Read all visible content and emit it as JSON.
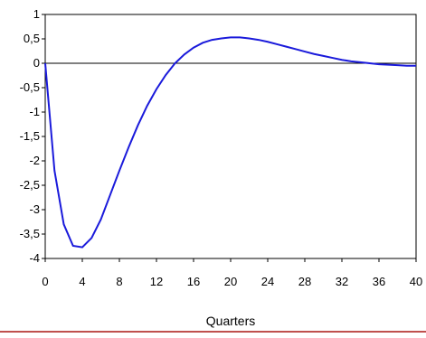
{
  "chart_data": {
    "type": "line",
    "title": "",
    "xlabel": "Quarters",
    "ylabel": "",
    "xlim": [
      0,
      40
    ],
    "ylim": [
      -4,
      1
    ],
    "x_ticks": [
      0,
      4,
      8,
      12,
      16,
      20,
      24,
      28,
      32,
      36,
      40
    ],
    "x_tick_labels": [
      "0",
      "4",
      "8",
      "12",
      "16",
      "20",
      "24",
      "28",
      "32",
      "36",
      "40"
    ],
    "y_ticks": [
      1,
      0.5,
      0,
      -0.5,
      -1,
      -1.5,
      -2,
      -2.5,
      -3,
      -3.5,
      -4
    ],
    "y_tick_labels": [
      "1",
      "0,5",
      "0",
      "-0,5",
      "-1",
      "-1,5",
      "-2",
      "-2,5",
      "-3",
      "-3,5",
      "-4"
    ],
    "grid": false,
    "zero_line": true,
    "series": [
      {
        "color": "#1a1adb",
        "x": [
          0,
          1,
          2,
          3,
          4,
          5,
          6,
          7,
          8,
          9,
          10,
          11,
          12,
          13,
          14,
          15,
          16,
          17,
          18,
          19,
          20,
          21,
          22,
          23,
          24,
          25,
          26,
          27,
          28,
          29,
          30,
          31,
          32,
          33,
          34,
          35,
          36,
          37,
          38,
          39,
          40
        ],
        "y": [
          0,
          -2.2,
          -3.3,
          -3.74,
          -3.77,
          -3.58,
          -3.2,
          -2.7,
          -2.2,
          -1.72,
          -1.27,
          -0.87,
          -0.53,
          -0.24,
          0,
          0.18,
          0.32,
          0.42,
          0.48,
          0.51,
          0.53,
          0.53,
          0.51,
          0.48,
          0.44,
          0.39,
          0.34,
          0.29,
          0.24,
          0.19,
          0.15,
          0.11,
          0.07,
          0.04,
          0.02,
          0,
          -0.02,
          -0.03,
          -0.04,
          -0.05,
          -0.05
        ]
      }
    ]
  },
  "colors": {
    "line": "#1a1adb",
    "bottom_rule": "#c0504d"
  }
}
